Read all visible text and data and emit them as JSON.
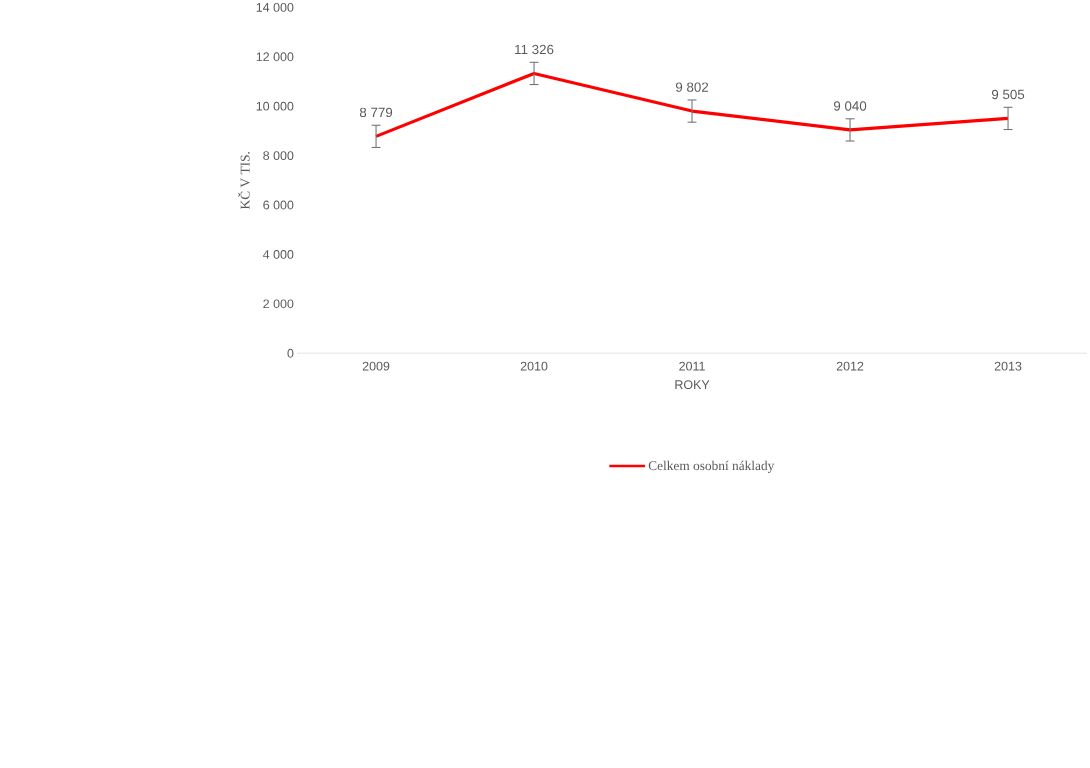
{
  "chart_data": {
    "type": "line",
    "xlabel": "ROKY",
    "ylabel": "KČ V TIS.",
    "categories": [
      "2009",
      "2010",
      "2011",
      "2012",
      "2013"
    ],
    "series": [
      {
        "name": "Celkem osobní náklady",
        "color": "#ff0000",
        "values": [
          8779,
          11326,
          9802,
          9040,
          9505
        ],
        "errors": [
          450,
          450,
          450,
          450,
          450
        ],
        "value_labels": [
          "8 779",
          "11 326",
          "9 802",
          "9 040",
          "9 505"
        ]
      }
    ],
    "ylim": [
      0,
      14000
    ],
    "yticks": [
      {
        "value": 0,
        "label": "0"
      },
      {
        "value": 2000,
        "label": "2 000"
      },
      {
        "value": 4000,
        "label": "4 000"
      },
      {
        "value": 6000,
        "label": "6 000"
      },
      {
        "value": 8000,
        "label": "8 000"
      },
      {
        "value": 10000,
        "label": "10 000"
      },
      {
        "value": 12000,
        "label": "12 000"
      },
      {
        "value": 14000,
        "label": "14 000"
      }
    ],
    "legend": "bottom",
    "marker": "none",
    "line_style": "solid"
  }
}
